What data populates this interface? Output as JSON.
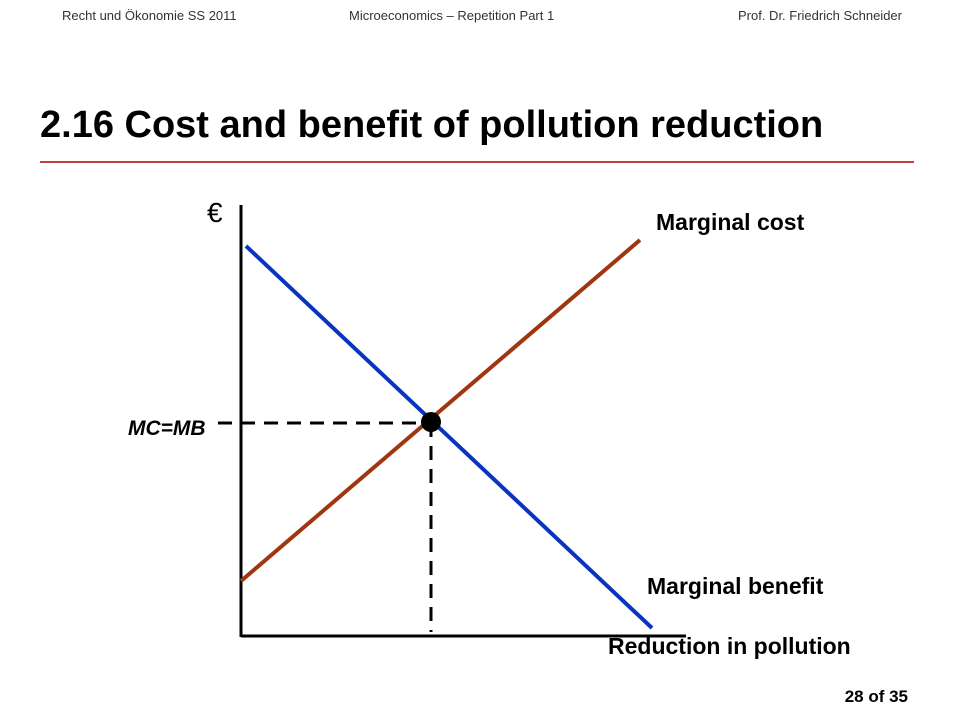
{
  "header": {
    "left": "Recht und Ökonomie SS 2011",
    "center": "Microeconomics – Repetition Part 1",
    "right": "Prof. Dr. Friedrich Schneider"
  },
  "title": "2.16  Cost and benefit of pollution reduction",
  "diagram": {
    "y_axis_label": "€",
    "x_axis_label": "Reduction in pollution",
    "marginal_cost_label": "Marginal cost",
    "marginal_benefit_label": "Marginal benefit",
    "equilibrium_label": "MC=MB",
    "colors": {
      "marginal_cost": "#a0360f",
      "marginal_benefit": "#0a34c0",
      "title_rule": "#c04040"
    }
  },
  "page_number": "28 of 35"
}
